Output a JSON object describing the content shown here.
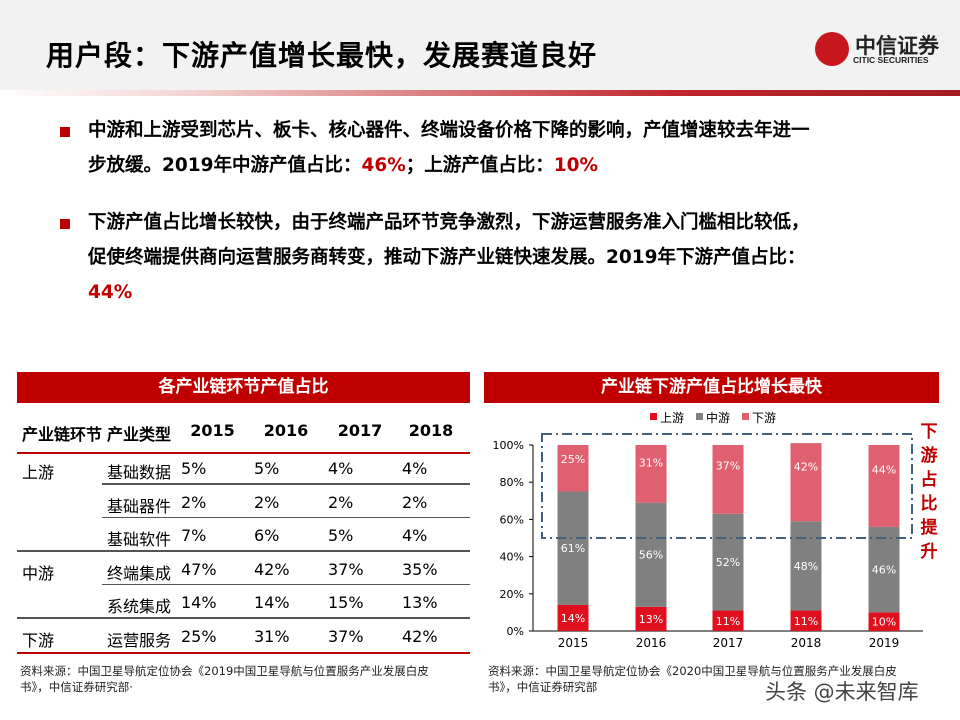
{
  "slide": {
    "title": "用户段：下游产值增长最快，发展赛道良好"
  },
  "logo": {
    "cn": "中信证券",
    "en": "CITIC SECURITIES"
  },
  "bullets": [
    {
      "line1": "中游和上游受到芯片、板卡、核心器件、终端设备价格下降的影响，产值增速较去年进一",
      "line2a": "步放缓。2019年中游产值占比：",
      "v1": "46%",
      "line2b": "；上游产值占比：",
      "v2": "10%"
    },
    {
      "line1": "下游产值占比增长较快，由于终端产品环节竞争激烈，下游运营服务准入门槛相比较低，",
      "line2": "促使终端提供商向运营服务商转变，推动下游产业链快速发展。2019年下游产值占比：",
      "v1": "44%"
    }
  ],
  "table": {
    "title": "各产业链环节产值占比",
    "headers": [
      "产业链环节",
      "产业类型",
      "2015",
      "2016",
      "2017",
      "2018"
    ],
    "rows": [
      [
        "上游",
        "基础数据",
        "5%",
        "5%",
        "4%",
        "4%"
      ],
      [
        "",
        "基础器件",
        "2%",
        "2%",
        "2%",
        "2%"
      ],
      [
        "",
        "基础软件",
        "7%",
        "6%",
        "5%",
        "4%"
      ],
      [
        "中游",
        "终端集成",
        "47%",
        "42%",
        "37%",
        "35%"
      ],
      [
        "",
        "系统集成",
        "14%",
        "14%",
        "15%",
        "13%"
      ],
      [
        "下游",
        "运营服务",
        "25%",
        "31%",
        "37%",
        "42%"
      ]
    ],
    "source": [
      "资料来源：中国卫星导航定位协会《2019中国卫星导航与位置服务产业发展白皮",
      "书》，中信证券研究部·"
    ]
  },
  "chart_data": {
    "type": "bar",
    "stacked": true,
    "title": "产业链下游产值占比增长最快",
    "categories": [
      "2015",
      "2016",
      "2017",
      "2018",
      "2019"
    ],
    "series": [
      {
        "name": "上游",
        "values": [
          14,
          13,
          11,
          11,
          10
        ],
        "color": "#e0101f"
      },
      {
        "name": "中游",
        "values": [
          61,
          56,
          52,
          48,
          46
        ],
        "color": "#808080"
      },
      {
        "name": "下游",
        "values": [
          25,
          31,
          37,
          42,
          44
        ],
        "color": "#e06070"
      }
    ],
    "ylim": [
      0,
      100
    ],
    "yticks": [
      "0%",
      "20%",
      "40%",
      "60%",
      "80%",
      "100%"
    ],
    "legend": "top",
    "annotation": "下游占比提升",
    "source": [
      "资料来源：中国卫星导航定位协会《2020中国卫星导航与位置服务产业发展白皮",
      "书》，中信证券研究部"
    ]
  },
  "watermark": "头条 @未来智库"
}
